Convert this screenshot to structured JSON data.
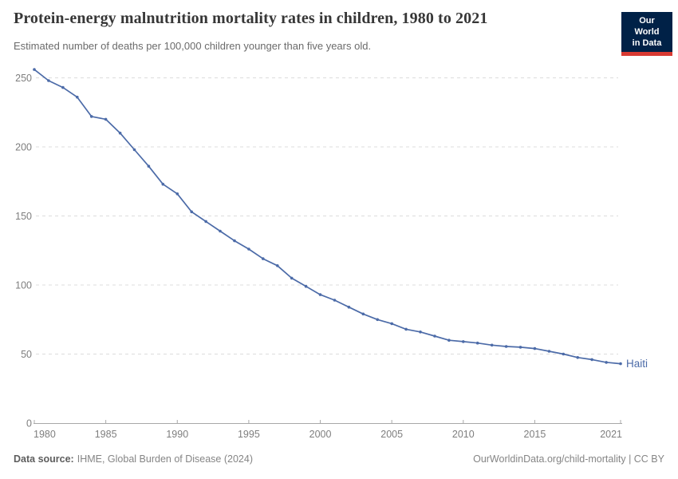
{
  "header": {
    "title": "Protein-energy malnutrition mortality rates in children, 1980 to 2021",
    "subtitle": "Estimated number of deaths per 100,000 children younger than five years old.",
    "logo": {
      "line1": "Our World",
      "line2": "in Data"
    }
  },
  "chart_data": {
    "type": "line",
    "title": "Protein-energy malnutrition mortality rates in children, 1980 to 2021",
    "xlabel": "",
    "ylabel": "Estimated number of deaths per 100,000 children younger than five years old",
    "x": [
      1980,
      1981,
      1982,
      1983,
      1984,
      1985,
      1986,
      1987,
      1988,
      1989,
      1990,
      1991,
      1992,
      1993,
      1994,
      1995,
      1996,
      1997,
      1998,
      1999,
      2000,
      2001,
      2002,
      2003,
      2004,
      2005,
      2006,
      2007,
      2008,
      2009,
      2010,
      2011,
      2012,
      2013,
      2014,
      2015,
      2016,
      2017,
      2018,
      2019,
      2020,
      2021
    ],
    "series": [
      {
        "name": "Haiti",
        "color": "#4C6BA8",
        "values": [
          256,
          248,
          243,
          236,
          222,
          220,
          210,
          198,
          186,
          173,
          166,
          153,
          146,
          139,
          132,
          126,
          119,
          114,
          105,
          99,
          93,
          89,
          84,
          79,
          75,
          72,
          68,
          66,
          63,
          60,
          59,
          58,
          56.5,
          55.5,
          55,
          54,
          52,
          50,
          47.5,
          46,
          44,
          43
        ]
      }
    ],
    "x_ticks": [
      1980,
      1985,
      1990,
      1995,
      2000,
      2005,
      2010,
      2015,
      2021
    ],
    "y_ticks": [
      0,
      50,
      100,
      150,
      200,
      250
    ],
    "xlim": [
      1980,
      2021
    ],
    "ylim": [
      0,
      260
    ],
    "grid": "horizontal-dashed",
    "legend_position": "line-end-label"
  },
  "footer": {
    "data_source_label": "Data source:",
    "data_source_value": "IHME, Global Burden of Disease (2024)",
    "credit": "OurWorldinData.org/child-mortality | CC BY"
  },
  "colors": {
    "line": "#4C6BA8",
    "series_label": "#4C6BA8",
    "grid": "#dcdcdc",
    "axis": "#a8a8a8",
    "tick_text": "#7e7e7e",
    "logo_bg": "#002147",
    "logo_red": "#d93a32"
  }
}
